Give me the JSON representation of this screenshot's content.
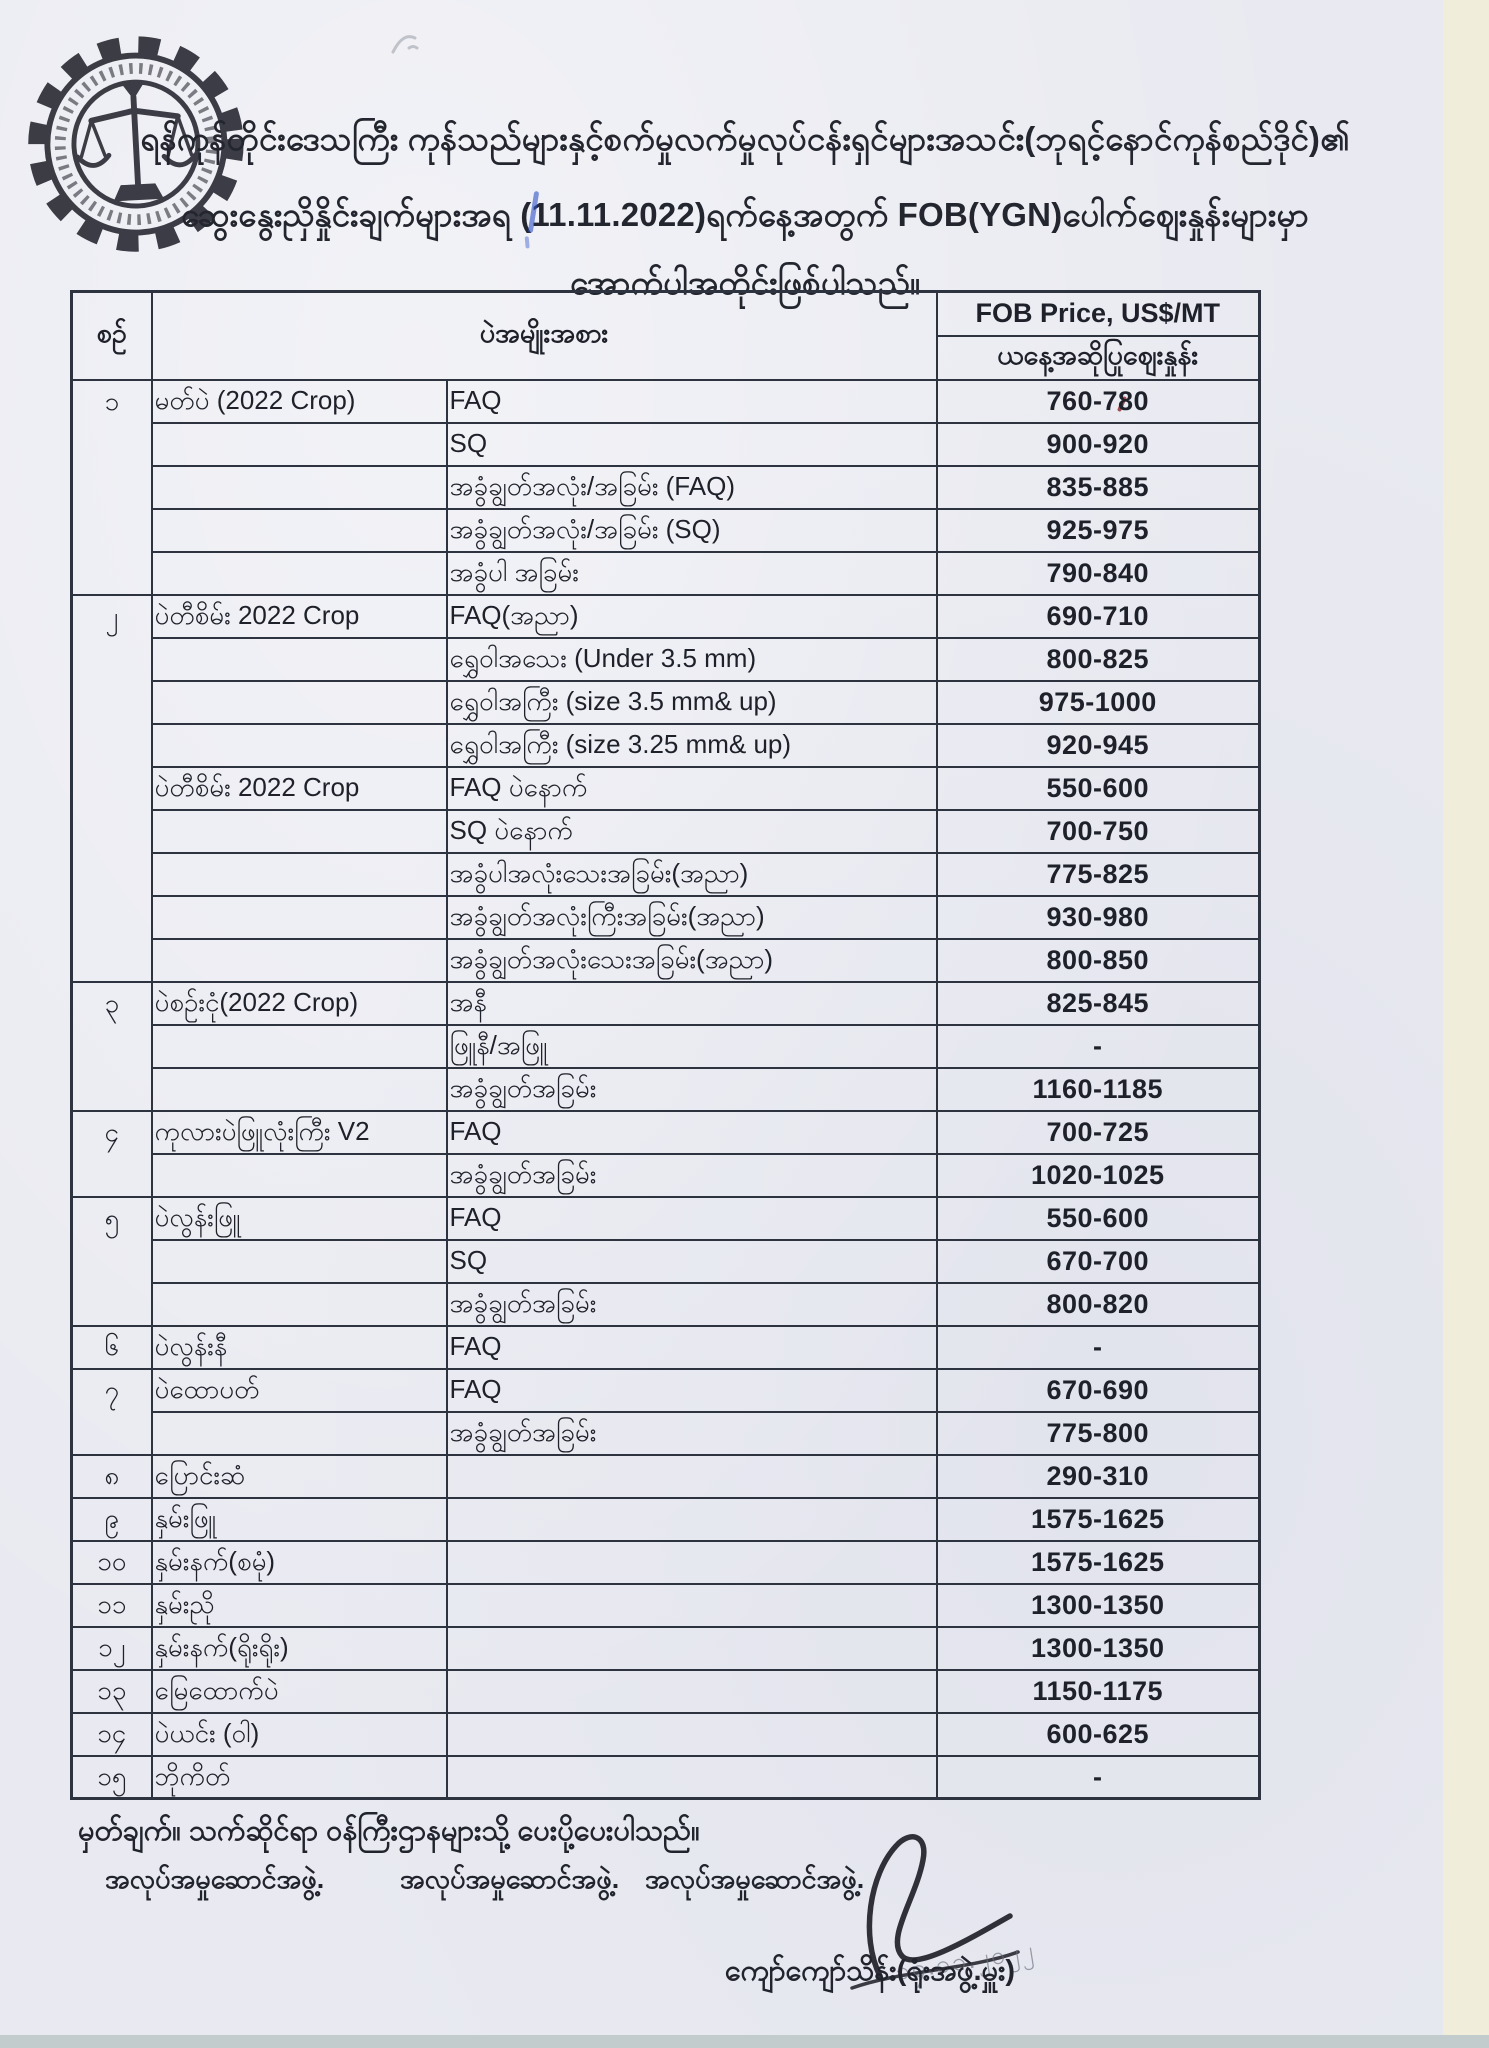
{
  "header": {
    "line1": "ရန်ကုန်တိုင်းဒေသကြီး ကုန်သည်များနှင့်စက်မှုလက်မှုလုပ်ငန်းရှင်များအသင်း(ဘုရင့်နောင်ကုန်စည်ဒိုင်)၏",
    "line2_pre": "ဆွေးနွေးညှိနှိုင်းချက်များအရ (",
    "date": "11.11.2022",
    "line2_post": ")ရက်နေ့အတွက် FOB(YGN)ပေါက်ဈေးနှုန်းများမှာ",
    "line3": "အောက်ပါအတိုင်းဖြစ်ပါသည်။",
    "stamp": "gear-border-circular-stamp-with-scales-of-justice"
  },
  "table": {
    "headers": {
      "no": "စဉ်",
      "type": "ပဲအမျိုးအစား",
      "price": "FOB Price, US$/MT",
      "price_sub": "ယနေ့အဆိုပြုဈေးနှုန်း"
    },
    "rows": [
      {
        "no": "၁",
        "name": "မတ်ပဲ (2022 Crop)",
        "grade": "FAQ",
        "price": "760-780",
        "group_start": true
      },
      {
        "no": "",
        "name": "",
        "grade": "SQ",
        "price": "900-920",
        "group_start": false
      },
      {
        "no": "",
        "name": "",
        "grade": "အခွံချွတ်အလုံး/အခြမ်း (FAQ)",
        "price": "835-885",
        "group_start": false
      },
      {
        "no": "",
        "name": "",
        "grade": "အခွံချွတ်အလုံး/အခြမ်း (SQ)",
        "price": "925-975",
        "group_start": false
      },
      {
        "no": "",
        "name": "",
        "grade": "အခွံပါ အခြမ်း",
        "price": "790-840",
        "group_start": false
      },
      {
        "no": "၂",
        "name": "ပဲတီစိမ်း 2022 Crop",
        "grade": "FAQ(အညာ)",
        "price": "690-710",
        "group_start": true
      },
      {
        "no": "",
        "name": "",
        "grade": "ရွှေဝါအသေး (Under 3.5 mm)",
        "price": "800-825",
        "group_start": false
      },
      {
        "no": "",
        "name": "",
        "grade": "ရွှေဝါအကြီး (size 3.5 mm& up)",
        "price": "975-1000",
        "group_start": false
      },
      {
        "no": "",
        "name": "",
        "grade": "ရွှေဝါအကြီး (size 3.25 mm& up)",
        "price": "920-945",
        "group_start": false
      },
      {
        "no": "",
        "name": "ပဲတီစိမ်း 2022 Crop",
        "grade": "FAQ ပဲနောက်",
        "price": "550-600",
        "group_start": false
      },
      {
        "no": "",
        "name": "",
        "grade": "SQ ပဲနောက်",
        "price": "700-750",
        "group_start": false
      },
      {
        "no": "",
        "name": "",
        "grade": "အခွံပါအလုံးသေးအခြမ်း(အညာ)",
        "price": "775-825",
        "group_start": false
      },
      {
        "no": "",
        "name": "",
        "grade": "အခွံချွတ်အလုံးကြီးအခြမ်း(အညာ)",
        "price": "930-980",
        "group_start": false
      },
      {
        "no": "",
        "name": "",
        "grade": "အခွံချွတ်အလုံးသေးအခြမ်း(အညာ)",
        "price": "800-850",
        "group_start": false
      },
      {
        "no": "၃",
        "name": "ပဲစဉ်းငုံ(2022 Crop)",
        "grade": "အနီ",
        "price": "825-845",
        "group_start": true
      },
      {
        "no": "",
        "name": "",
        "grade": "ဖြူနီ/အဖြူ",
        "price": "-",
        "group_start": false
      },
      {
        "no": "",
        "name": "",
        "grade": "အခွံချွတ်အခြမ်း",
        "price": "1160-1185",
        "group_start": false
      },
      {
        "no": "၄",
        "name": "ကုလားပဲဖြူလုံးကြီး V2",
        "grade": "FAQ",
        "price": "700-725",
        "group_start": true
      },
      {
        "no": "",
        "name": "",
        "grade": "အခွံချွတ်အခြမ်း",
        "price": "1020-1025",
        "group_start": false
      },
      {
        "no": "၅",
        "name": "ပဲလွန်းဖြူ",
        "grade": "FAQ",
        "price": "550-600",
        "group_start": true
      },
      {
        "no": "",
        "name": "",
        "grade": "SQ",
        "price": "670-700",
        "group_start": false
      },
      {
        "no": "",
        "name": "",
        "grade": "အခွံချွတ်အခြမ်း",
        "price": "800-820",
        "group_start": false
      },
      {
        "no": "၆",
        "name": "ပဲလွန်းနီ",
        "grade": "FAQ",
        "price": "-",
        "group_start": true
      },
      {
        "no": "၇",
        "name": "ပဲထောပတ်",
        "grade": "FAQ",
        "price": "670-690",
        "group_start": true
      },
      {
        "no": "",
        "name": "",
        "grade": "အခွံချွတ်အခြမ်း",
        "price": "775-800",
        "group_start": false
      },
      {
        "no": "၈",
        "name": "ပြောင်းဆံ",
        "grade": "",
        "price": "290-310",
        "group_start": true
      },
      {
        "no": "၉",
        "name": "နှမ်းဖြူ",
        "grade": "",
        "price": "1575-1625",
        "group_start": true
      },
      {
        "no": "၁၀",
        "name": "နှမ်းနက်(စမုံ)",
        "grade": "",
        "price": "1575-1625",
        "group_start": true
      },
      {
        "no": "၁၁",
        "name": "နှမ်းညို",
        "grade": "",
        "price": "1300-1350",
        "group_start": true
      },
      {
        "no": "၁၂",
        "name": "နှမ်းနက်(ရိုးရိုး)",
        "grade": "",
        "price": "1300-1350",
        "group_start": true
      },
      {
        "no": "၁၃",
        "name": "မြေထောက်ပဲ",
        "grade": "",
        "price": "1150-1175",
        "group_start": true
      },
      {
        "no": "၁၄",
        "name": "ပဲယင်း (ဝါ)",
        "grade": "",
        "price": "600-625",
        "group_start": true
      },
      {
        "no": "၁၅",
        "name": "ဘိုကိတ်",
        "grade": "",
        "price": "-",
        "group_start": true
      }
    ]
  },
  "footer": {
    "note": "မှတ်ချက်။ သက်ဆိုင်ရာ ဝန်ကြီးဌာနများသို့ ပေးပို့ပေးပါသည်။",
    "committees": [
      "အလုပ်အမှုဆောင်အဖွဲ့.",
      "အလုပ်အမှုဆောင်အဖွဲ့.",
      "အလုပ်အမှုဆောင်အဖွဲ့."
    ],
    "handwritten_date": "၁၄.၁၁.၂၀၂၂",
    "signer": "ကျော်ကျော်သိန်း(ရုံးအဖွဲ့.မှူး)"
  }
}
